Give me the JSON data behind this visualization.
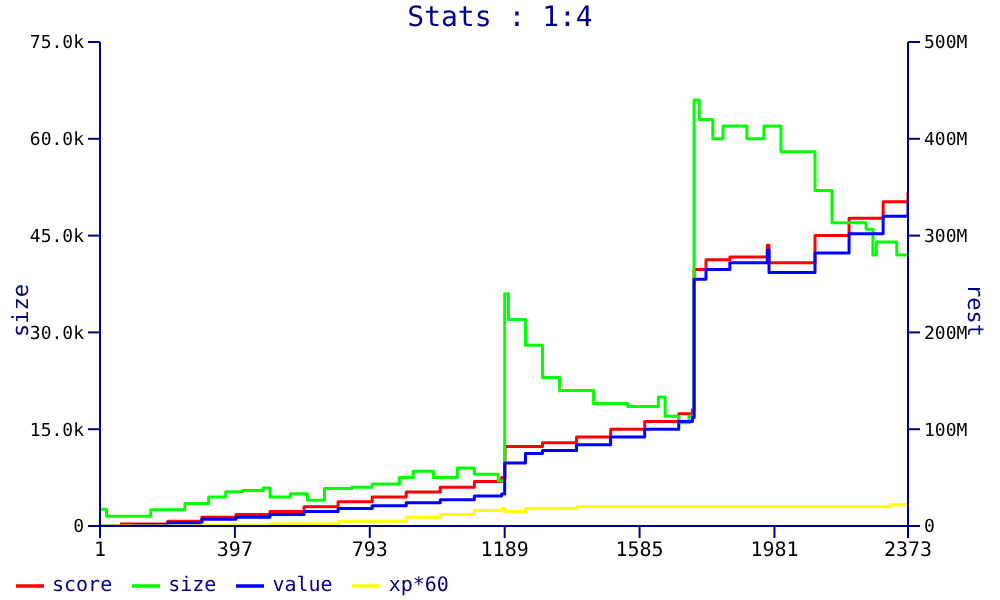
{
  "chart_data": {
    "type": "step",
    "title": "Stats : 1:4",
    "xlabel": null,
    "ylabel": "size",
    "y2label": "rest",
    "xlim": [
      1,
      2373
    ],
    "xticks": [
      1,
      397,
      793,
      1189,
      1585,
      1981,
      2373
    ],
    "ylim": [
      0,
      75000
    ],
    "yticks": [
      0,
      {
        "value": 15000,
        "label": "15.0k"
      },
      {
        "value": 30000,
        "label": "30.0k"
      },
      {
        "value": 45000,
        "label": "45.0k"
      },
      {
        "value": 60000,
        "label": "60.0k"
      },
      {
        "value": 75000,
        "label": "75.0k"
      }
    ],
    "y2lim": [
      0,
      500000000
    ],
    "y2ticks": [
      0,
      {
        "value": 100000000,
        "label": "100M"
      },
      {
        "value": 200000000,
        "label": "200M"
      },
      {
        "value": 300000000,
        "label": "300M"
      },
      {
        "value": 400000000,
        "label": "400M"
      },
      {
        "value": 500000000,
        "label": "500M"
      }
    ],
    "grid": false,
    "legend": "bottom",
    "marker": "none",
    "line_style": "solid",
    "series": [
      {
        "name": "score",
        "color": "#ff0000",
        "axis": "y2",
        "x": [
          60,
          200,
          300,
          400,
          500,
          600,
          700,
          800,
          900,
          1000,
          1100,
          1180,
          1190,
          1300,
          1400,
          1500,
          1600,
          1700,
          1740,
          1745,
          1780,
          1850,
          1960,
          1965,
          2100,
          2200,
          2300,
          2373
        ],
        "values": [
          2000000,
          5000000,
          9000000,
          12000000,
          15000000,
          20000000,
          25000000,
          30000000,
          35000000,
          40000000,
          46000000,
          50000000,
          82000000,
          86000000,
          92000000,
          100000000,
          108000000,
          116000000,
          120000000,
          265000000,
          275000000,
          278000000,
          290000000,
          272000000,
          300000000,
          318000000,
          335000000,
          345000000
        ]
      },
      {
        "name": "size",
        "color": "#00ff00",
        "x": [
          1,
          20,
          150,
          250,
          320,
          370,
          420,
          480,
          500,
          560,
          610,
          660,
          740,
          800,
          880,
          920,
          980,
          1050,
          1100,
          1170,
          1189,
          1200,
          1250,
          1300,
          1350,
          1450,
          1550,
          1640,
          1660,
          1700,
          1730,
          1745,
          1760,
          1800,
          1830,
          1900,
          1950,
          2000,
          2080,
          2100,
          2150,
          2250,
          2270,
          2280,
          2340,
          2373
        ],
        "values": [
          2600,
          1500,
          2500,
          3500,
          4500,
          5300,
          5500,
          5900,
          4500,
          5000,
          4000,
          5800,
          6000,
          6500,
          7500,
          8500,
          7500,
          9000,
          8000,
          7000,
          36000,
          32000,
          28000,
          23000,
          21000,
          19000,
          18500,
          20000,
          17000,
          16000,
          17000,
          66000,
          63000,
          60000,
          62000,
          60000,
          62000,
          58000,
          58000,
          52000,
          47000,
          46000,
          42000,
          44000,
          42000,
          42000
        ]
      },
      {
        "name": "value",
        "color": "#0000ff",
        "axis": "y2",
        "x": [
          1,
          100,
          200,
          300,
          400,
          500,
          600,
          700,
          800,
          900,
          1000,
          1100,
          1180,
          1189,
          1250,
          1300,
          1400,
          1500,
          1600,
          1700,
          1740,
          1745,
          1780,
          1850,
          1960,
          1965,
          2100,
          2200,
          2300,
          2373
        ],
        "values": [
          0,
          1000000,
          3000000,
          7000000,
          9000000,
          12000000,
          15000000,
          18000000,
          21000000,
          24000000,
          27000000,
          31000000,
          33000000,
          65000000,
          75000000,
          78000000,
          84000000,
          92000000,
          100000000,
          108000000,
          112000000,
          255000000,
          265000000,
          272000000,
          285000000,
          262000000,
          282000000,
          302000000,
          320000000,
          335000000
        ]
      },
      {
        "name": "xp*60",
        "color": "#ffff00",
        "axis": "y2",
        "x": [
          1,
          300,
          500,
          700,
          900,
          1000,
          1100,
          1180,
          1189,
          1250,
          1400,
          2300,
          2320,
          2373
        ],
        "values": [
          0,
          1000000,
          2000000,
          5000000,
          9000000,
          12000000,
          16000000,
          18000000,
          15000000,
          18000000,
          20000000,
          20000000,
          22000000,
          22000000
        ]
      }
    ]
  }
}
